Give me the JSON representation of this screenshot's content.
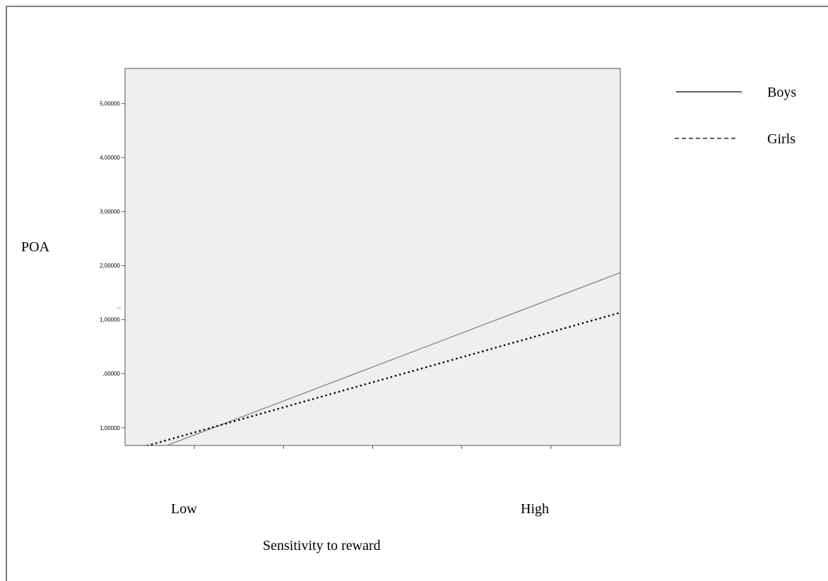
{
  "chart_data": {
    "type": "line",
    "ylabel": "POA",
    "xlabel": "Sensitivity to reward",
    "x_category_labels": [
      "Low",
      "High"
    ],
    "y_tick_labels": [
      "1,00000",
      ",00000",
      "1,00000",
      "2,00000",
      "3,00000",
      "4,00000",
      "5,00000"
    ],
    "y_tick_values": [
      -1,
      0,
      1,
      2,
      3,
      4,
      5
    ],
    "ylim": [
      -1.33,
      5.65
    ],
    "xlim": [
      0,
      1
    ],
    "x_ticks": [
      0.14,
      0.32,
      0.5,
      0.68,
      0.86
    ],
    "series": [
      {
        "name": "Boys",
        "style": "solid",
        "color": "#808080",
        "points": [
          [
            0.05,
            -1.45
          ],
          [
            1.0,
            1.87
          ]
        ]
      },
      {
        "name": "Girls",
        "style": "dotted",
        "color": "#000000",
        "points": [
          [
            0.0,
            -1.45
          ],
          [
            1.0,
            1.13
          ]
        ]
      }
    ],
    "legend_position": "right",
    "background": "#efefef"
  }
}
